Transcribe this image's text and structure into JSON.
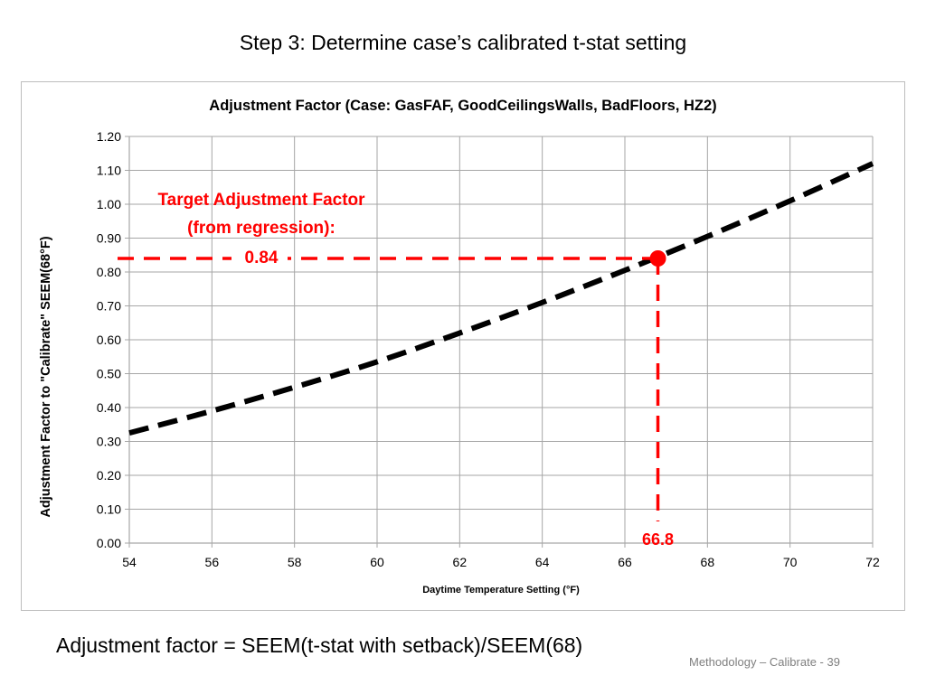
{
  "slide": {
    "title": "Step 3: Determine case’s calibrated t-stat setting",
    "caption": "Adjustment factor = SEEM(t-stat with setback)/SEEM(68)",
    "footer": "Methodology – Calibrate - 39"
  },
  "chart_data": {
    "type": "line",
    "title": "Adjustment Factor (Case: GasFAF, GoodCeilingsWalls, BadFloors, HZ2)",
    "xlabel": "Daytime Temperature Setting (°F)",
    "ylabel": "Adjustment Factor to \"Calibrate\" SEEM(68°F)",
    "xlim": [
      54,
      72
    ],
    "ylim": [
      0,
      1.2
    ],
    "x_ticks": [
      54,
      56,
      58,
      60,
      62,
      64,
      66,
      68,
      70,
      72
    ],
    "y_ticks": [
      0.0,
      0.1,
      0.2,
      0.3,
      0.4,
      0.5,
      0.6,
      0.7,
      0.8,
      0.9,
      1.0,
      1.1,
      1.2
    ],
    "x_tick_labels": [
      "54",
      "56",
      "58",
      "60",
      "62",
      "64",
      "66",
      "68",
      "70",
      "72"
    ],
    "y_tick_labels": [
      "0.00",
      "0.10",
      "0.20",
      "0.30",
      "0.40",
      "0.50",
      "0.60",
      "0.70",
      "0.80",
      "0.90",
      "1.00",
      "1.10",
      "1.20"
    ],
    "grid": "horizontal and vertical",
    "legend": "none",
    "series": [
      {
        "style": "black dashed",
        "x": [
          54,
          56,
          58,
          60,
          62,
          64,
          66,
          68,
          70,
          72
        ],
        "y": [
          0.325,
          0.39,
          0.46,
          0.535,
          0.62,
          0.71,
          0.805,
          0.905,
          1.01,
          1.12
        ]
      }
    ],
    "target": {
      "x": 66.8,
      "y": 0.84,
      "label_lines": [
        "Target Adjustment Factor",
        "(from regression):",
        "0.84"
      ],
      "x_label": "66.8",
      "color": "#ff0000"
    },
    "colors": {
      "line": "#000000",
      "target": "#ff0000",
      "grid": "#a6a6a6",
      "frame": "#bdbdbd"
    }
  }
}
